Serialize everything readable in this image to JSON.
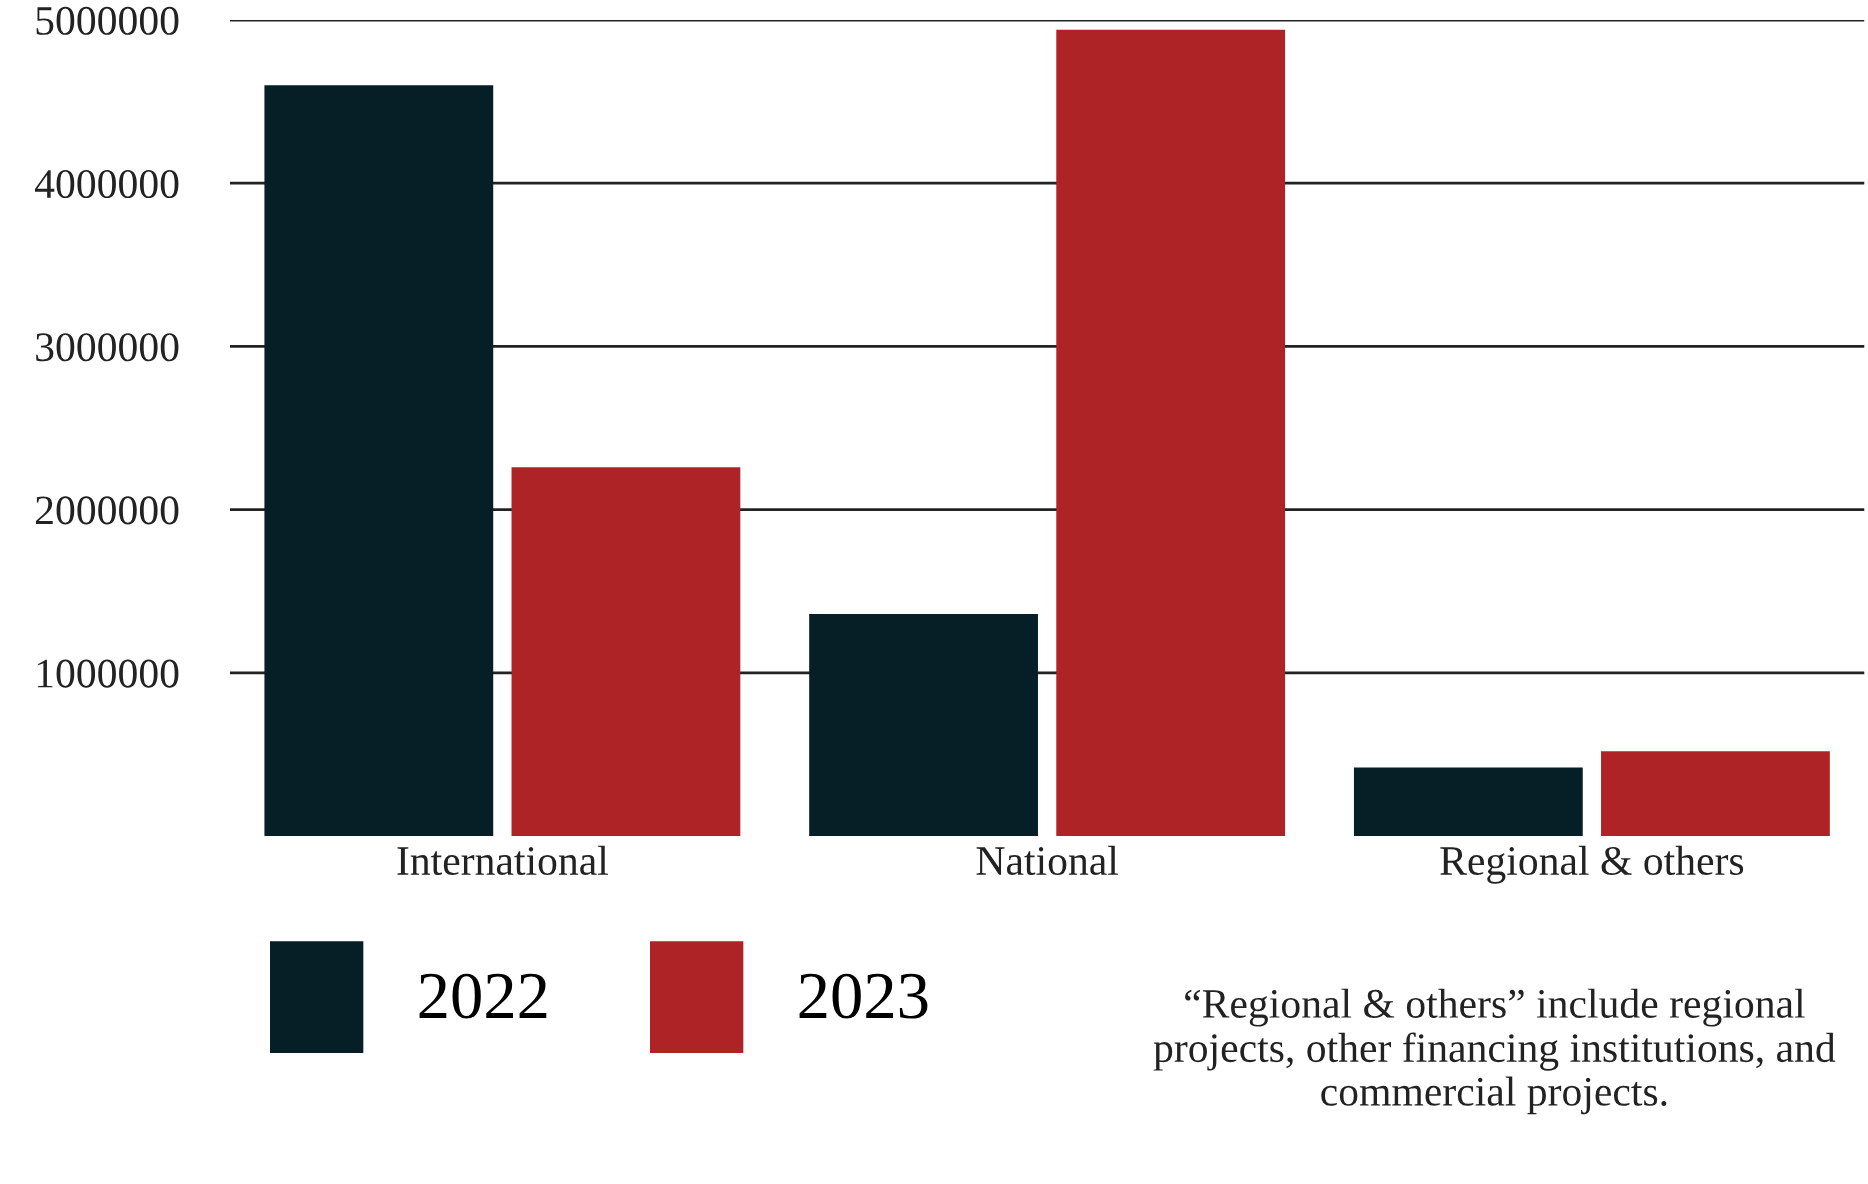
{
  "chart_data": {
    "type": "bar",
    "categories": [
      "International",
      "National",
      "Regional & others"
    ],
    "series": [
      {
        "name": "2022",
        "color": "#061e25",
        "values": [
          4600000,
          1360000,
          420000
        ]
      },
      {
        "name": "2023",
        "color": "#ad2326",
        "values": [
          2260000,
          4940000,
          520000
        ]
      }
    ],
    "ylim": [
      0,
      5000000
    ],
    "yticks": [
      1000000,
      2000000,
      3000000,
      4000000,
      5000000
    ],
    "grid": "y",
    "legend": "bottom",
    "annotations": [
      "“Regional & others” include regional projects, other financing institutions, and commercial projects."
    ]
  }
}
